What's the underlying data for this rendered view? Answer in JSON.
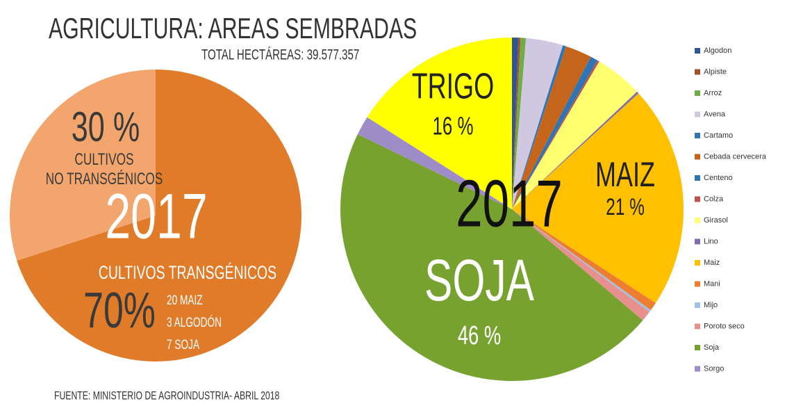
{
  "title": "AGRICULTURA: AREAS SEMBRADAS",
  "subtitle": "TOTAL HECTÁREAS: 39.577.357",
  "source": "FUENTE: MINISTERIO DE AGROINDUSTRIA- ABRIL 2018",
  "chart_data": [
    {
      "type": "pie",
      "categories": [
        "CULTIVOS TRANSGÉNICOS",
        "CULTIVOS\nNO TRANSGÉNICOS"
      ],
      "values": [
        70,
        30
      ],
      "value_labels": [
        "70%",
        "30 %"
      ],
      "colors": [
        "#e07b2a",
        "#f2a66d"
      ],
      "center_label": "2017",
      "breakdown": [
        "20 MAIZ",
        "3 ALGODÓN",
        "7 SOJA"
      ]
    },
    {
      "type": "pie",
      "categories": [
        "Algodon",
        "Alpiste",
        "Arroz",
        "Avena",
        "Cartamo",
        "Cebada cervecera",
        "Centeno",
        "Colza",
        "Girasol",
        "Lino",
        "Maiz",
        "Mani",
        "Mijo",
        "Poroto seco",
        "Soja",
        "Sorgo",
        null
      ],
      "values": [
        0.6,
        0.2,
        0.5,
        3.5,
        0.3,
        2.5,
        0.7,
        0.2,
        4.5,
        0.2,
        21,
        0.8,
        0.2,
        1,
        46,
        1.8,
        16
      ],
      "slice_names": [
        null,
        null,
        null,
        null,
        null,
        null,
        null,
        null,
        null,
        null,
        "MAIZ",
        null,
        null,
        null,
        "SOJA",
        null,
        "TRIGO"
      ],
      "value_labels": [
        null,
        null,
        null,
        null,
        null,
        null,
        null,
        null,
        null,
        null,
        "21 %",
        null,
        null,
        null,
        "46 %",
        null,
        "16 %"
      ],
      "colors": [
        "#2f5597",
        "#a0522d",
        "#70ad47",
        "#d0c8e0",
        "#2e75b6",
        "#c5651c",
        "#2e75b6",
        "#c0504d",
        "#ffff70",
        "#7f6eab",
        "#ffc000",
        "#ed7d31",
        "#9dc3e6",
        "#e8908e",
        "#77a22f",
        "#9e8cc9",
        "#ffff00"
      ],
      "center_label": "2017"
    }
  ]
}
